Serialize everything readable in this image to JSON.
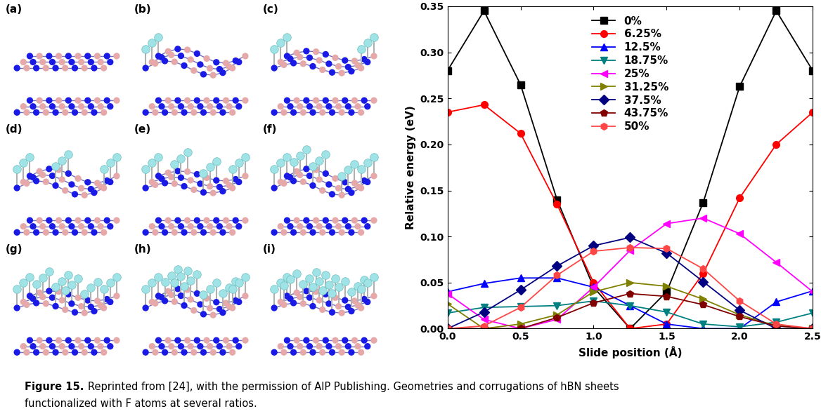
{
  "chart_data": {
    "type": "line",
    "xlabel": "Slide position (Å)",
    "ylabel": "Relative energy (eV)",
    "x": [
      0.0,
      0.25,
      0.5,
      0.75,
      1.0,
      1.25,
      1.5,
      1.75,
      2.0,
      2.25,
      2.5
    ],
    "xlim": [
      0.0,
      2.5
    ],
    "xticks": [
      {
        "value": 0.0,
        "label": "0.0"
      },
      {
        "value": 0.5,
        "label": "0.5"
      },
      {
        "value": 1.0,
        "label": "1.0"
      },
      {
        "value": 1.5,
        "label": "1.5"
      },
      {
        "value": 2.0,
        "label": "2.0"
      },
      {
        "value": 2.5,
        "label": "2.5"
      }
    ],
    "ylim": [
      0.0,
      0.35
    ],
    "yticks": [
      {
        "value": 0.0,
        "label": "0.00"
      },
      {
        "value": 0.05,
        "label": "0.05"
      },
      {
        "value": 0.1,
        "label": "0.10"
      },
      {
        "value": 0.15,
        "label": "0.15"
      },
      {
        "value": 0.2,
        "label": "0.20"
      },
      {
        "value": 0.25,
        "label": "0.25"
      },
      {
        "value": 0.3,
        "label": "0.30"
      },
      {
        "value": 0.35,
        "label": "0.35"
      }
    ],
    "legend": "upper center",
    "series": [
      {
        "name": "0%",
        "color": "#000000",
        "marker": "square",
        "values": [
          0.28,
          0.345,
          0.265,
          0.14,
          0.045,
          0.0,
          0.04,
          0.137,
          0.263,
          0.345,
          0.28
        ]
      },
      {
        "name": "6.25%",
        "color": "#ff0000",
        "marker": "circle",
        "values": [
          0.235,
          0.243,
          0.212,
          0.135,
          0.05,
          0.0,
          0.005,
          0.06,
          0.142,
          0.2,
          0.235
        ]
      },
      {
        "name": "12.5%",
        "color": "#0000ff",
        "marker": "triangle_up",
        "values": [
          0.04,
          0.049,
          0.055,
          0.055,
          0.045,
          0.025,
          0.005,
          0.0,
          0.0,
          0.029,
          0.041
        ]
      },
      {
        "name": "18.75%",
        "color": "#008080",
        "marker": "triangle_down",
        "values": [
          0.017,
          0.023,
          0.024,
          0.025,
          0.03,
          0.025,
          0.018,
          0.005,
          0.002,
          0.007,
          0.017
        ]
      },
      {
        "name": "25%",
        "color": "#ff00ff",
        "marker": "triangle_left",
        "values": [
          0.038,
          0.01,
          0.0,
          0.01,
          0.045,
          0.085,
          0.114,
          0.12,
          0.103,
          0.072,
          0.04
        ]
      },
      {
        "name": "31.25%",
        "color": "#808000",
        "marker": "triangle_right",
        "values": [
          0.027,
          0.0,
          0.005,
          0.015,
          0.04,
          0.05,
          0.046,
          0.032,
          0.015,
          0.003,
          0.0
        ]
      },
      {
        "name": "37.5%",
        "color": "#000080",
        "marker": "diamond",
        "values": [
          0.0,
          0.018,
          0.042,
          0.068,
          0.09,
          0.099,
          0.082,
          0.051,
          0.02,
          0.0,
          0.0
        ]
      },
      {
        "name": "43.75%",
        "color": "#800000",
        "marker": "pentagon",
        "values": [
          0.0,
          0.0,
          0.0,
          0.012,
          0.028,
          0.038,
          0.035,
          0.026,
          0.013,
          0.003,
          0.0
        ]
      },
      {
        "name": "50%",
        "color": "#ff4646",
        "marker": "hexagon",
        "values": [
          0.0,
          0.003,
          0.023,
          0.058,
          0.084,
          0.088,
          0.087,
          0.065,
          0.03,
          0.005,
          0.0
        ]
      }
    ]
  },
  "panel_labels": [
    "(a)",
    "(b)",
    "(c)",
    "(d)",
    "(e)",
    "(f)",
    "(g)",
    "(h)",
    "(i)"
  ],
  "caption": {
    "label": "Figure 15.",
    "lines": [
      "Reprinted from [24], with the permission of AIP Publishing. Geometries and corrugations of hBN sheets",
      "functionalized with F atoms at several ratios."
    ]
  }
}
